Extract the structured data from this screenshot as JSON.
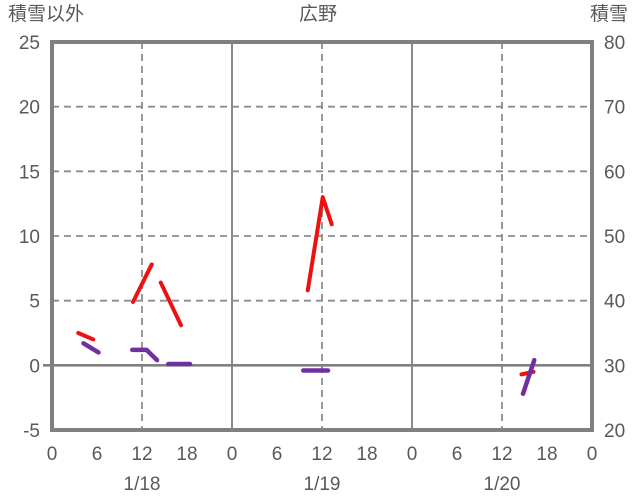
{
  "header": {
    "left_axis_title": "積雪以外",
    "station_title": "広野",
    "right_axis_title": "積雪"
  },
  "colors": {
    "frame": "#808080",
    "grid": "#8c8c8c",
    "zero_line": "#808080",
    "text": "#595959",
    "red_series": "#ee1111",
    "purple_series": "#7030a0",
    "background": "#ffffff"
  },
  "chart_data": {
    "type": "line",
    "title": "広野",
    "left_axis": {
      "label": "積雪以外",
      "min": -5,
      "max": 25,
      "ticks": [
        -5,
        0,
        5,
        10,
        15,
        20,
        25
      ]
    },
    "right_axis": {
      "label": "積雪",
      "min": 20,
      "max": 80,
      "ticks": [
        20,
        30,
        40,
        50,
        60,
        70,
        80
      ]
    },
    "x_axis": {
      "min_hours": 0,
      "max_hours": 72,
      "tick_step_hours": 6,
      "tick_labels": [
        "0",
        "6",
        "12",
        "18",
        "0",
        "6",
        "12",
        "18",
        "0",
        "6",
        "12",
        "18",
        "0"
      ],
      "date_labels": [
        {
          "label": "1/18",
          "hour": 12
        },
        {
          "label": "1/19",
          "hour": 36
        },
        {
          "label": "1/20",
          "hour": 60
        }
      ]
    },
    "gridlines": {
      "horizontal_dashed_values": [
        5,
        10,
        15,
        20
      ],
      "vertical_solid_hours": [
        24,
        48
      ],
      "vertical_dashed_hours": [
        12,
        36,
        60
      ],
      "zero_line_value": 0
    },
    "series": [
      {
        "name": "red-series",
        "color": "#ee1111",
        "stroke_width": 4,
        "segments": [
          [
            [
              3.5,
              2.5
            ],
            [
              5.5,
              2.0
            ]
          ],
          [
            [
              10.8,
              4.9
            ],
            [
              13.3,
              7.8
            ]
          ],
          [
            [
              14.5,
              6.4
            ],
            [
              17.2,
              3.1
            ]
          ],
          [
            [
              34.1,
              5.8
            ],
            [
              36.1,
              13.0
            ],
            [
              37.3,
              10.9
            ]
          ],
          [
            [
              62.6,
              -0.7
            ],
            [
              64.2,
              -0.5
            ]
          ]
        ]
      },
      {
        "name": "purple-series",
        "color": "#7030a0",
        "stroke_width": 4.5,
        "segments": [
          [
            [
              4.2,
              1.7
            ],
            [
              6.2,
              1.0
            ]
          ],
          [
            [
              10.7,
              1.2
            ],
            [
              12.6,
              1.2
            ],
            [
              14.0,
              0.4
            ]
          ],
          [
            [
              15.5,
              0.1
            ],
            [
              18.4,
              0.1
            ]
          ],
          [
            [
              33.5,
              -0.4
            ],
            [
              36.8,
              -0.4
            ]
          ],
          [
            [
              62.8,
              -2.2
            ],
            [
              64.3,
              0.4
            ]
          ]
        ]
      }
    ]
  }
}
